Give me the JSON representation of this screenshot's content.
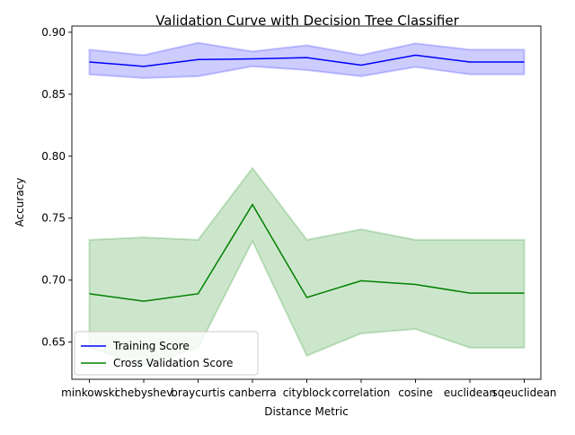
{
  "chart_data": {
    "type": "line",
    "title": "Validation Curve with Decision Tree Classifier",
    "xlabel": "Distance Metric",
    "ylabel": "Accuracy",
    "categories": [
      "minkowski",
      "chebyshev",
      "braycurtis",
      "canberra",
      "cityblock",
      "correlation",
      "cosine",
      "euclidean",
      "sqeuclidean"
    ],
    "ylim": [
      0.62,
      0.905
    ],
    "yticks": [
      "0.65",
      "0.70",
      "0.75",
      "0.80",
      "0.85",
      "0.90"
    ],
    "legend_position": "lower-left",
    "series": [
      {
        "name": "Training Score",
        "color": "#0000ff",
        "values": [
          0.876,
          0.8725,
          0.878,
          0.8785,
          0.8795,
          0.8735,
          0.8815,
          0.876,
          0.876
        ],
        "upper": [
          0.886,
          0.8815,
          0.8915,
          0.8845,
          0.8895,
          0.8815,
          0.891,
          0.886,
          0.886
        ],
        "lower": [
          0.866,
          0.863,
          0.8645,
          0.8725,
          0.8695,
          0.8645,
          0.872,
          0.866,
          0.866
        ]
      },
      {
        "name": "Cross Validation Score",
        "color": "#008000",
        "values": [
          0.689,
          0.683,
          0.689,
          0.761,
          0.686,
          0.6995,
          0.6965,
          0.6895,
          0.6895
        ],
        "upper": [
          0.7325,
          0.7345,
          0.7325,
          0.7905,
          0.7325,
          0.741,
          0.7325,
          0.7325,
          0.7325
        ],
        "lower": [
          0.6455,
          0.6315,
          0.6455,
          0.7315,
          0.639,
          0.657,
          0.6605,
          0.6455,
          0.6455
        ]
      }
    ]
  }
}
